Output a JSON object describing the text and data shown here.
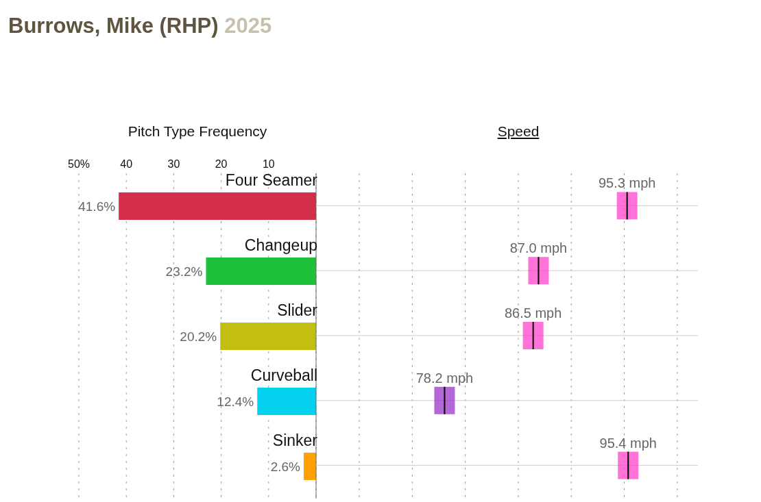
{
  "chart_data": [
    {
      "type": "bar",
      "orientation": "horizontal",
      "title": "Burrows, Mike (RHP)",
      "subtitle": "2025",
      "xlabel": "Pitch Type Frequency",
      "categories": [
        "Four Seamer",
        "Changeup",
        "Slider",
        "Curveball",
        "Sinker"
      ],
      "values": [
        41.6,
        23.2,
        20.2,
        12.4,
        2.6
      ],
      "colors": [
        "#d42f4a",
        "#1dc23a",
        "#c3be12",
        "#04d1ef",
        "#ffa100"
      ],
      "value_labels": [
        "41.6%",
        "23.2%",
        "20.2%",
        "12.4%",
        "2.6%"
      ],
      "xlim": [
        50,
        0
      ],
      "xticks": [
        {
          "value": 50,
          "label": "50%"
        },
        40,
        30,
        20,
        10
      ],
      "grid": "x"
    },
    {
      "type": "scatter",
      "orientation": "horizontal",
      "xlabel": "Speed",
      "categories": [
        null,
        null,
        null,
        null,
        null
      ],
      "values": [
        95.3,
        87.0,
        86.5,
        78.2,
        95.4
      ],
      "colors": [
        "#ff44cc",
        "#ff44cc",
        "#ff44cc",
        "#9b35c8",
        "#ff44cc"
      ],
      "value_labels": [
        "95.3 mph",
        "87.0 mph",
        "86.5 mph",
        "78.2 mph",
        "95.4 mph"
      ],
      "grid": true,
      "marker": "square"
    }
  ]
}
